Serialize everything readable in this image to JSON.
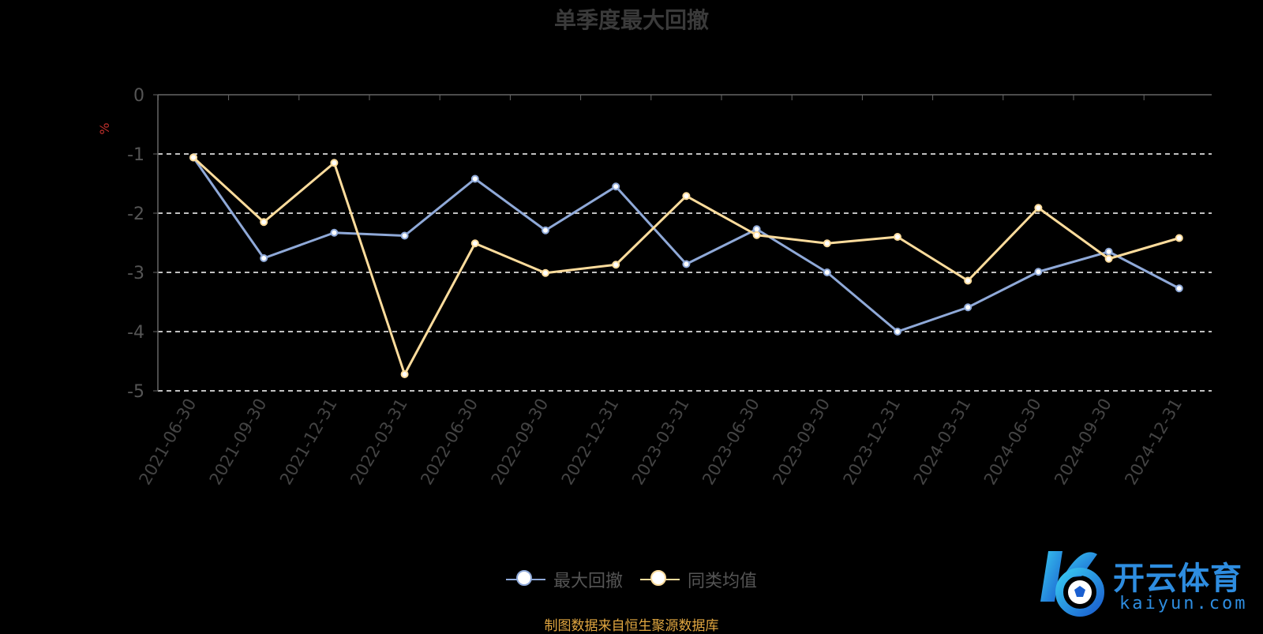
{
  "chart_data": {
    "type": "line",
    "title": "单季度最大回撤",
    "ylabel": "%",
    "ylim": [
      -5,
      0
    ],
    "yticks": [
      0,
      -1,
      -2,
      -3,
      -4,
      -5
    ],
    "grid": true,
    "legend_position": "bottom-center",
    "categories": [
      "2021-06-30",
      "2021-09-30",
      "2021-12-31",
      "2022-03-31",
      "2022-06-30",
      "2022-09-30",
      "2022-12-31",
      "2023-03-31",
      "2023-06-30",
      "2023-09-30",
      "2023-12-31",
      "2024-03-31",
      "2024-06-30",
      "2024-09-30",
      "2024-12-31"
    ],
    "series": [
      {
        "name": "最大回撤",
        "color": "#8fa9d8",
        "values": [
          -1.06,
          -2.76,
          -2.33,
          -2.38,
          -1.42,
          -2.29,
          -1.55,
          -2.86,
          -2.27,
          -3.0,
          -4.0,
          -3.59,
          -2.99,
          -2.65,
          -3.27
        ]
      },
      {
        "name": "同类均值",
        "color": "#fddc9c",
        "values": [
          -1.06,
          -2.15,
          -1.15,
          -4.72,
          -2.51,
          -3.01,
          -2.87,
          -1.71,
          -2.37,
          -2.51,
          -2.4,
          -3.14,
          -1.91,
          -2.77,
          -2.42
        ]
      }
    ]
  },
  "source_note": "制图数据来自恒生聚源数据库",
  "logo": {
    "text": "开云体育",
    "sub": "kaiyun.com"
  }
}
